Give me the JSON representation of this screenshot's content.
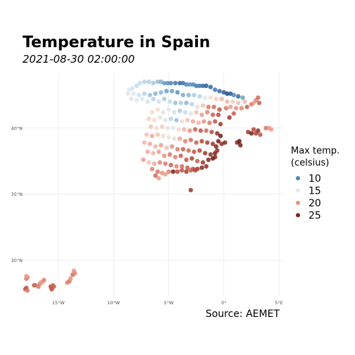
{
  "chart_data": {
    "type": "scatter",
    "title": "Temperature in Spain",
    "subtitle": "2021-08-30 02:00:00",
    "caption": "Source: AEMET",
    "xlim": [
      -18.5,
      5.5
    ],
    "ylim": [
      27.3,
      44.2
    ],
    "x_ticks": [
      -15,
      -10,
      -5,
      0,
      5
    ],
    "x_tick_labels": [
      "15°W",
      "10°W",
      "5°W",
      "0°",
      "5°E"
    ],
    "y_ticks": [
      30,
      35,
      40
    ],
    "y_tick_labels": [
      "30°N",
      "35°N",
      "40°N"
    ],
    "grid": true,
    "legend": {
      "position": "right",
      "title_lines": [
        "Max temp.",
        "(celsius)"
      ],
      "entries": [
        {
          "label": "10",
          "value": 10
        },
        {
          "label": "15",
          "value": 15
        },
        {
          "label": "20",
          "value": 20
        },
        {
          "label": "25",
          "value": 25
        }
      ]
    },
    "color_scale": {
      "stops": [
        {
          "value": 7,
          "color": "#08306b"
        },
        {
          "value": 10,
          "color": "#4a86b8"
        },
        {
          "value": 13,
          "color": "#a9cbe3"
        },
        {
          "value": 15,
          "color": "#dde8f1"
        },
        {
          "value": 17,
          "color": "#f3d9d0"
        },
        {
          "value": 20,
          "color": "#e8907e"
        },
        {
          "value": 23,
          "color": "#b5483a"
        },
        {
          "value": 26,
          "color": "#6a1510"
        }
      ]
    },
    "points": [
      [
        -8.6,
        42.9,
        15.0
      ],
      [
        -8.3,
        43.0,
        14.6
      ],
      [
        -7.9,
        43.2,
        14.0
      ],
      [
        -7.6,
        43.4,
        14.2
      ],
      [
        -7.2,
        43.5,
        13.6
      ],
      [
        -6.8,
        43.5,
        13.3
      ],
      [
        -6.4,
        43.4,
        12.8
      ],
      [
        -6.0,
        43.5,
        12.5
      ],
      [
        -5.7,
        43.5,
        11.8
      ],
      [
        -5.4,
        43.4,
        11.0
      ],
      [
        -5.1,
        43.4,
        10.5
      ],
      [
        -4.8,
        43.4,
        10.0
      ],
      [
        -4.4,
        43.4,
        9.6
      ],
      [
        -4.0,
        43.4,
        9.0
      ],
      [
        -3.7,
        43.4,
        9.3
      ],
      [
        -3.4,
        43.3,
        10.0
      ],
      [
        -3.1,
        43.3,
        10.5
      ],
      [
        -2.8,
        43.3,
        10.0
      ],
      [
        -2.5,
        43.2,
        9.5
      ],
      [
        -2.2,
        43.2,
        9.5
      ],
      [
        -1.9,
        43.2,
        9.0
      ],
      [
        -1.6,
        43.2,
        8.6
      ],
      [
        -1.2,
        43.1,
        9.0
      ],
      [
        -0.8,
        42.9,
        9.5
      ],
      [
        -0.4,
        42.8,
        9.0
      ],
      [
        0.0,
        42.7,
        8.5
      ],
      [
        0.3,
        42.6,
        8.0
      ],
      [
        0.6,
        42.6,
        8.5
      ],
      [
        0.9,
        42.5,
        10.0
      ],
      [
        1.3,
        42.4,
        9.0
      ],
      [
        1.7,
        42.3,
        11.0
      ],
      [
        -8.7,
        42.6,
        15.5
      ],
      [
        -8.2,
        42.6,
        15.2
      ],
      [
        -7.7,
        42.5,
        14.4
      ],
      [
        -7.2,
        42.6,
        13.5
      ],
      [
        -6.7,
        42.5,
        12.5
      ],
      [
        -6.2,
        42.6,
        12.0
      ],
      [
        -5.7,
        42.7,
        12.0
      ],
      [
        -5.2,
        42.8,
        11.0
      ],
      [
        -4.7,
        42.8,
        11.0
      ],
      [
        -4.2,
        42.7,
        10.5
      ],
      [
        -3.7,
        42.5,
        11.5
      ],
      [
        -3.2,
        42.5,
        12.0
      ],
      [
        -2.7,
        42.5,
        13.0
      ],
      [
        -2.2,
        42.4,
        13.5
      ],
      [
        -1.7,
        42.3,
        15.0
      ],
      [
        -1.2,
        42.3,
        16.5
      ],
      [
        -0.7,
        42.2,
        17.5
      ],
      [
        -0.2,
        42.2,
        18.5
      ],
      [
        0.3,
        42.0,
        18.5
      ],
      [
        0.8,
        42.0,
        17.5
      ],
      [
        1.3,
        41.9,
        18.0
      ],
      [
        -8.4,
        42.2,
        16.0
      ],
      [
        -7.9,
        42.1,
        15.5
      ],
      [
        -7.4,
        42.2,
        15.0
      ],
      [
        -6.9,
        42.0,
        14.5
      ],
      [
        -6.4,
        42.2,
        13.5
      ],
      [
        -5.9,
        42.0,
        14.5
      ],
      [
        -5.4,
        42.2,
        13.0
      ],
      [
        -4.9,
        42.0,
        14.0
      ],
      [
        -4.4,
        41.9,
        12.5
      ],
      [
        -3.9,
        41.9,
        13.0
      ],
      [
        -3.4,
        41.9,
        12.0
      ],
      [
        -2.9,
        41.8,
        13.5
      ],
      [
        -2.4,
        41.6,
        16.0
      ],
      [
        -1.9,
        41.7,
        18.0
      ],
      [
        -1.4,
        41.6,
        21.0
      ],
      [
        -0.9,
        41.6,
        21.5
      ],
      [
        -0.4,
        41.4,
        22.5
      ],
      [
        0.2,
        41.5,
        21.0
      ],
      [
        0.6,
        41.6,
        19.5
      ],
      [
        1.1,
        41.5,
        20.0
      ],
      [
        1.6,
        41.5,
        20.5
      ],
      [
        2.1,
        41.6,
        22.0
      ],
      [
        2.5,
        41.8,
        21.0
      ],
      [
        2.9,
        42.1,
        20.5
      ],
      [
        3.1,
        42.3,
        21.5
      ],
      [
        2.7,
        41.9,
        19.5
      ],
      [
        3.2,
        41.9,
        22.0
      ],
      [
        1.9,
        42.0,
        18.5
      ],
      [
        -6.5,
        41.2,
        17.0
      ],
      [
        -6.0,
        41.4,
        16.5
      ],
      [
        -5.5,
        41.2,
        16.0
      ],
      [
        -5.0,
        41.4,
        15.5
      ],
      [
        -4.5,
        41.2,
        14.5
      ],
      [
        -4.0,
        41.3,
        13.0
      ],
      [
        -3.5,
        41.2,
        14.0
      ],
      [
        -3.0,
        41.1,
        15.5
      ],
      [
        -2.5,
        41.2,
        18.0
      ],
      [
        -2.0,
        41.0,
        19.5
      ],
      [
        -1.5,
        41.2,
        20.5
      ],
      [
        -1.0,
        41.0,
        22.0
      ],
      [
        -0.5,
        41.0,
        23.0
      ],
      [
        0.5,
        40.8,
        24.0
      ],
      [
        0.9,
        41.1,
        22.0
      ],
      [
        -6.8,
        40.7,
        17.5
      ],
      [
        -6.3,
        40.6,
        17.0
      ],
      [
        -5.8,
        40.8,
        16.0
      ],
      [
        -5.3,
        40.6,
        15.5
      ],
      [
        -4.8,
        40.7,
        13.5
      ],
      [
        -4.3,
        40.6,
        12.5
      ],
      [
        -3.8,
        40.5,
        16.0
      ],
      [
        -3.3,
        40.6,
        18.0
      ],
      [
        -2.8,
        40.5,
        19.0
      ],
      [
        -2.3,
        40.4,
        18.5
      ],
      [
        -1.8,
        40.5,
        20.0
      ],
      [
        -1.3,
        40.4,
        21.0
      ],
      [
        -0.8,
        40.5,
        22.5
      ],
      [
        -0.3,
        40.3,
        24.0
      ],
      [
        -6.6,
        40.1,
        18.0
      ],
      [
        -6.1,
        40.0,
        17.0
      ],
      [
        -5.6,
        40.1,
        17.5
      ],
      [
        -5.1,
        40.0,
        16.0
      ],
      [
        -4.6,
        40.0,
        15.0
      ],
      [
        -4.1,
        39.9,
        17.0
      ],
      [
        -3.6,
        39.9,
        18.5
      ],
      [
        -3.1,
        39.8,
        20.0
      ],
      [
        -2.6,
        39.9,
        22.0
      ],
      [
        -2.1,
        39.8,
        22.5
      ],
      [
        -1.6,
        39.8,
        21.5
      ],
      [
        -1.1,
        39.7,
        23.0
      ],
      [
        -0.6,
        39.6,
        24.5
      ],
      [
        -0.3,
        39.4,
        26.0
      ],
      [
        -0.5,
        39.0,
        25.5
      ],
      [
        -0.2,
        38.8,
        24.5
      ],
      [
        0.1,
        38.9,
        25.0
      ],
      [
        -7.0,
        39.5,
        18.0
      ],
      [
        -6.5,
        39.4,
        19.0
      ],
      [
        -6.0,
        39.5,
        18.0
      ],
      [
        -5.5,
        39.4,
        17.0
      ],
      [
        -5.0,
        39.3,
        16.0
      ],
      [
        -4.5,
        39.2,
        16.5
      ],
      [
        -4.0,
        39.2,
        19.0
      ],
      [
        -3.5,
        39.0,
        20.5
      ],
      [
        -3.0,
        39.1,
        21.5
      ],
      [
        -2.5,
        38.9,
        22.0
      ],
      [
        -2.0,
        39.0,
        23.0
      ],
      [
        -1.5,
        38.9,
        23.5
      ],
      [
        -1.0,
        38.8,
        24.0
      ],
      [
        -0.7,
        38.6,
        25.0
      ],
      [
        -7.2,
        38.9,
        18.5
      ],
      [
        -6.7,
        38.8,
        19.0
      ],
      [
        -6.2,
        38.6,
        18.5
      ],
      [
        -5.7,
        38.7,
        19.5
      ],
      [
        -5.2,
        38.5,
        18.0
      ],
      [
        -4.7,
        38.6,
        20.0
      ],
      [
        -4.2,
        38.4,
        21.0
      ],
      [
        -3.7,
        38.4,
        22.0
      ],
      [
        -3.2,
        38.3,
        21.5
      ],
      [
        -2.7,
        38.2,
        22.5
      ],
      [
        -2.2,
        38.3,
        23.0
      ],
      [
        -1.7,
        38.1,
        24.0
      ],
      [
        -1.2,
        38.0,
        24.5
      ],
      [
        -0.8,
        38.1,
        25.5
      ],
      [
        -0.6,
        38.3,
        24.5
      ],
      [
        -6.9,
        38.2,
        19.0
      ],
      [
        -6.4,
        38.1,
        18.5
      ],
      [
        -5.9,
        38.2,
        19.5
      ],
      [
        -5.4,
        37.9,
        20.0
      ],
      [
        -4.9,
        38.0,
        21.0
      ],
      [
        -4.4,
        37.8,
        20.5
      ],
      [
        -3.9,
        37.9,
        22.0
      ],
      [
        -3.4,
        37.6,
        22.5
      ],
      [
        -2.9,
        37.7,
        23.5
      ],
      [
        -2.4,
        37.5,
        22.0
      ],
      [
        -1.9,
        37.4,
        24.0
      ],
      [
        -1.4,
        37.6,
        25.0
      ],
      [
        -1.0,
        37.7,
        26.0
      ],
      [
        -0.8,
        37.8,
        25.0
      ],
      [
        -7.3,
        37.6,
        19.5
      ],
      [
        -6.8,
        37.4,
        18.0
      ],
      [
        -6.3,
        37.3,
        19.0
      ],
      [
        -5.8,
        37.4,
        20.5
      ],
      [
        -5.3,
        37.3,
        21.0
      ],
      [
        -4.8,
        37.2,
        22.0
      ],
      [
        -4.3,
        37.1,
        20.5
      ],
      [
        -3.8,
        37.1,
        21.5
      ],
      [
        -3.3,
        37.0,
        22.0
      ],
      [
        -2.8,
        36.9,
        23.0
      ],
      [
        -2.4,
        36.9,
        24.0
      ],
      [
        -2.0,
        37.0,
        25.0
      ],
      [
        -1.6,
        37.1,
        24.5
      ],
      [
        -6.5,
        36.9,
        20.5
      ],
      [
        -6.0,
        36.7,
        21.0
      ],
      [
        -5.6,
        36.6,
        20.0
      ],
      [
        -5.3,
        36.5,
        19.5
      ],
      [
        -5.0,
        36.7,
        20.5
      ],
      [
        -4.6,
        36.7,
        25.5
      ],
      [
        -4.2,
        36.7,
        23.0
      ],
      [
        -3.8,
        36.8,
        22.5
      ],
      [
        -3.4,
        36.7,
        23.5
      ],
      [
        -3.0,
        36.8,
        22.0
      ],
      [
        -2.6,
        36.8,
        23.0
      ],
      [
        -6.2,
        36.4,
        21.5
      ],
      [
        -5.9,
        36.2,
        19.5
      ],
      [
        -3.0,
        35.3,
        24.0
      ],
      [
        1.2,
        38.9,
        25.0
      ],
      [
        1.4,
        39.0,
        26.0
      ],
      [
        2.2,
        39.7,
        24.0
      ],
      [
        2.5,
        39.6,
        25.5
      ],
      [
        2.9,
        39.6,
        23.5
      ],
      [
        3.1,
        39.8,
        24.5
      ],
      [
        3.3,
        39.5,
        22.5
      ],
      [
        2.7,
        39.9,
        23.0
      ],
      [
        3.8,
        40.0,
        21.0
      ],
      [
        4.1,
        40.0,
        20.0
      ],
      [
        4.3,
        39.9,
        19.5
      ],
      [
        1.5,
        38.7,
        25.5
      ],
      [
        -18.0,
        27.8,
        22.0
      ],
      [
        -17.9,
        27.9,
        22.5
      ],
      [
        -17.8,
        27.7,
        21.0
      ],
      [
        -17.9,
        28.6,
        21.0
      ],
      [
        -17.8,
        28.7,
        20.5
      ],
      [
        -17.9,
        28.8,
        19.5
      ],
      [
        -17.2,
        28.1,
        22.0
      ],
      [
        -17.1,
        28.1,
        21.5
      ],
      [
        -16.8,
        28.0,
        21.0
      ],
      [
        -16.7,
        28.2,
        20.5
      ],
      [
        -16.5,
        28.3,
        20.0
      ],
      [
        -16.4,
        28.4,
        19.0
      ],
      [
        -16.3,
        28.5,
        20.5
      ],
      [
        -16.6,
        28.3,
        19.5
      ],
      [
        -15.7,
        28.0,
        22.5
      ],
      [
        -15.6,
        27.8,
        23.0
      ],
      [
        -15.4,
        28.0,
        22.0
      ],
      [
        -15.5,
        28.1,
        21.5
      ],
      [
        -15.6,
        28.0,
        22.0
      ],
      [
        -14.2,
        28.3,
        20.5
      ],
      [
        -14.0,
        28.4,
        21.0
      ],
      [
        -13.9,
        28.6,
        20.0
      ],
      [
        -13.7,
        28.9,
        21.5
      ],
      [
        -13.5,
        29.0,
        20.5
      ],
      [
        -13.6,
        29.2,
        20.0
      ]
    ]
  }
}
